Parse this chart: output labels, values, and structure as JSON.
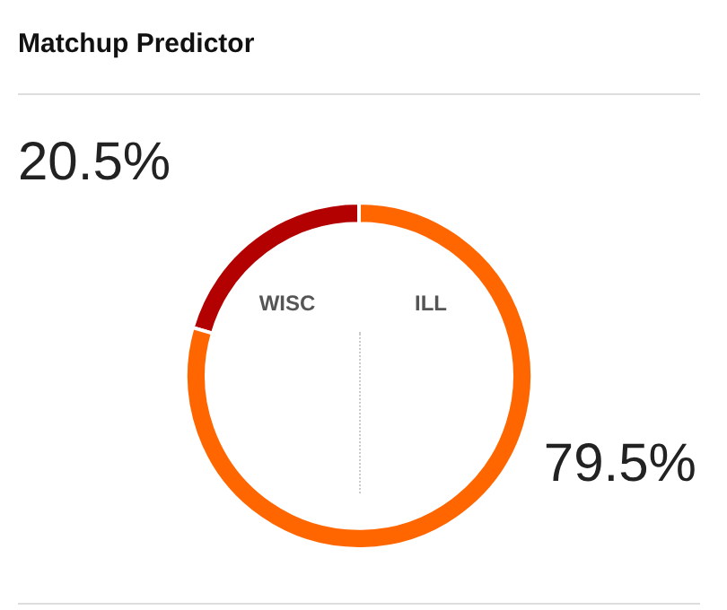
{
  "chart_data": {
    "type": "donut",
    "title": "Matchup Predictor",
    "categories": [
      "WISC",
      "ILL"
    ],
    "values": [
      20.5,
      79.5
    ],
    "value_labels": [
      "20.5%",
      "79.5%"
    ],
    "colors": [
      "#b30000",
      "#ff6600"
    ],
    "legend": false
  }
}
